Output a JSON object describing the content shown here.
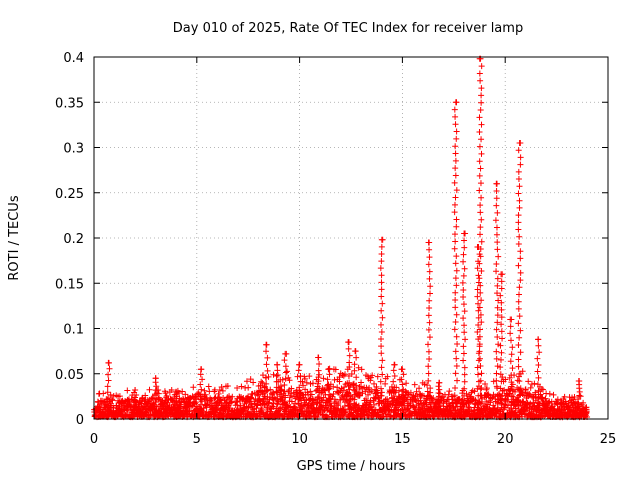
{
  "chart_data": {
    "type": "scatter",
    "title": "Day 010 of 2025, Rate Of TEC Index for receiver lamp",
    "xlabel": "GPS time / hours",
    "ylabel": "ROTI / TECUs",
    "xlim": [
      0,
      25
    ],
    "ylim": [
      0,
      0.4
    ],
    "x_ticks": [
      0,
      5,
      10,
      15,
      20,
      25
    ],
    "y_ticks": [
      0,
      0.05,
      0.1,
      0.15,
      0.2,
      0.25,
      0.3,
      0.35,
      0.4
    ],
    "x_tick_labels": [
      "0",
      "5",
      "10",
      "15",
      "20",
      "25"
    ],
    "y_tick_labels": [
      "0",
      "0.05",
      "0.1",
      "0.15",
      "0.2",
      "0.25",
      "0.3",
      "0.35",
      "0.4"
    ],
    "grid": true,
    "marker": "+",
    "color": "#ff0000",
    "baseline_envelope": [
      [
        0,
        0.018
      ],
      [
        1,
        0.02
      ],
      [
        2,
        0.02
      ],
      [
        3,
        0.022
      ],
      [
        4,
        0.02
      ],
      [
        5,
        0.024
      ],
      [
        6,
        0.022
      ],
      [
        7,
        0.024
      ],
      [
        8,
        0.03
      ],
      [
        9,
        0.035
      ],
      [
        10,
        0.03
      ],
      [
        11,
        0.035
      ],
      [
        12,
        0.04
      ],
      [
        13,
        0.035
      ],
      [
        14,
        0.03
      ],
      [
        15,
        0.03
      ],
      [
        16,
        0.025
      ],
      [
        17,
        0.02
      ],
      [
        18,
        0.02
      ],
      [
        19,
        0.025
      ],
      [
        20,
        0.03
      ],
      [
        21,
        0.035
      ],
      [
        22,
        0.018
      ],
      [
        23,
        0.018
      ],
      [
        24,
        0.015
      ]
    ],
    "spikes": [
      [
        0.7,
        0.062
      ],
      [
        2.0,
        0.032
      ],
      [
        3.0,
        0.045
      ],
      [
        4.0,
        0.03
      ],
      [
        5.2,
        0.055
      ],
      [
        8.4,
        0.082
      ],
      [
        8.9,
        0.06
      ],
      [
        9.3,
        0.072
      ],
      [
        10.0,
        0.06
      ],
      [
        10.9,
        0.068
      ],
      [
        11.4,
        0.055
      ],
      [
        12.4,
        0.085
      ],
      [
        12.7,
        0.075
      ],
      [
        14.0,
        0.198
      ],
      [
        14.6,
        0.06
      ],
      [
        15.0,
        0.055
      ],
      [
        16.3,
        0.195
      ],
      [
        16.8,
        0.04
      ],
      [
        17.6,
        0.35
      ],
      [
        18.0,
        0.205
      ],
      [
        18.8,
        0.398
      ],
      [
        18.7,
        0.19
      ],
      [
        19.6,
        0.26
      ],
      [
        19.8,
        0.16
      ],
      [
        20.3,
        0.11
      ],
      [
        20.7,
        0.305
      ],
      [
        21.6,
        0.088
      ],
      [
        23.6,
        0.042
      ]
    ],
    "seed": 1010
  }
}
